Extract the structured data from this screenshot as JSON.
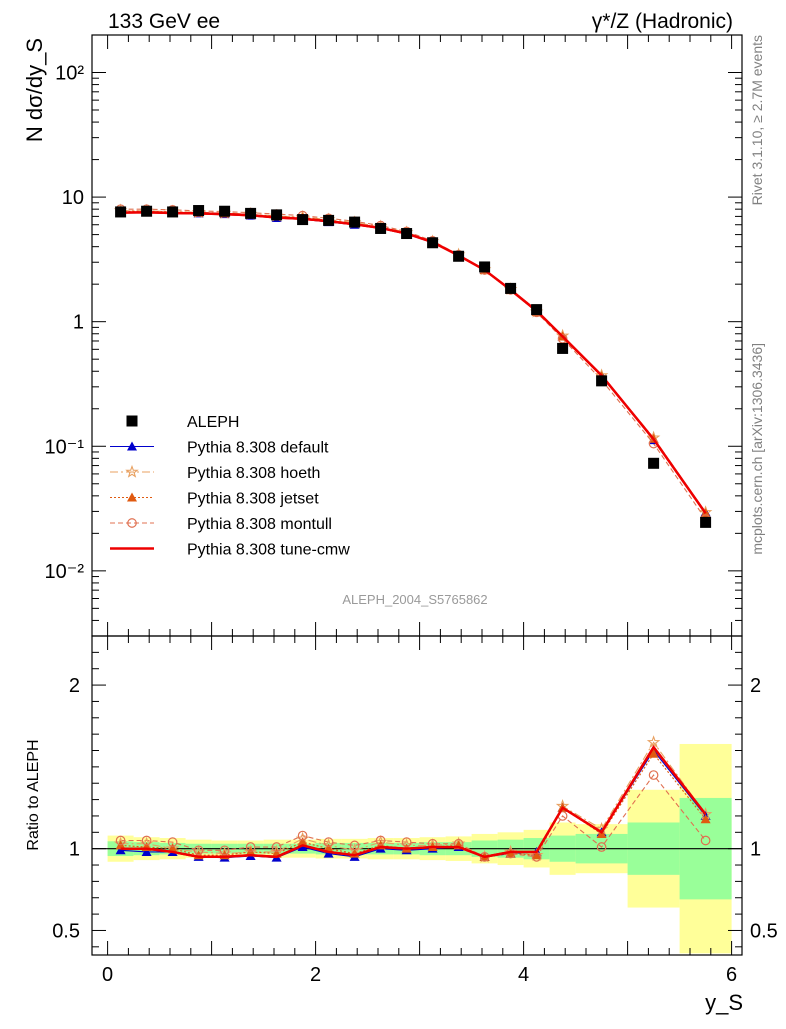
{
  "chart_data": [
    {
      "type": "scatter",
      "panel": "main",
      "title_left": "133 GeV ee",
      "title_right": "γ*/Z (Hadronic)",
      "ylabel": "N dσ/dy_S",
      "yscale": "log",
      "ylim": [
        0.003,
        200
      ],
      "xlim": [
        -0.15,
        6.1
      ],
      "y_ticks": [
        {
          "v": 0.01,
          "label": "10⁻²"
        },
        {
          "v": 0.1,
          "label": "10⁻¹"
        },
        {
          "v": 1,
          "label": "1"
        },
        {
          "v": 10,
          "label": "10"
        },
        {
          "v": 100,
          "label": "10²"
        }
      ],
      "watermark": "ALEPH_2004_S5765862",
      "side_text_top": "Rivet 3.1.10, ≥ 2.7M events",
      "side_text_bottom": "mcplots.cern.ch [arXiv:1306.3436]",
      "legend_position": "lower-left",
      "x": [
        0.125,
        0.375,
        0.625,
        0.875,
        1.125,
        1.375,
        1.625,
        1.875,
        2.125,
        2.375,
        2.625,
        2.875,
        3.125,
        3.375,
        3.625,
        3.875,
        4.125,
        4.375,
        4.75,
        5.25,
        5.75
      ],
      "data_series": {
        "name": "ALEPH",
        "color": "#000000",
        "values": [
          7.6,
          7.7,
          7.6,
          7.8,
          7.7,
          7.4,
          7.2,
          6.6,
          6.5,
          6.3,
          5.6,
          5.1,
          4.3,
          3.35,
          2.75,
          1.85,
          1.25,
          0.61,
          0.335,
          0.073,
          0.0245
        ]
      },
      "series": [
        {
          "name": "Pythia 8.308 default",
          "color": "#0000cc",
          "marker": "triangle",
          "line": "solid",
          "values": [
            7.55,
            7.55,
            7.45,
            7.4,
            7.3,
            7.1,
            6.8,
            6.65,
            6.3,
            6.0,
            5.6,
            5.05,
            4.3,
            3.4,
            2.6,
            1.8,
            1.23,
            0.76,
            0.37,
            0.112,
            0.0295
          ]
        },
        {
          "name": "Pythia 8.308 hoeth",
          "color": "#e8a060",
          "marker": "star",
          "line": "dashdot",
          "values": [
            7.8,
            7.75,
            7.65,
            7.55,
            7.45,
            7.3,
            7.05,
            6.9,
            6.6,
            6.25,
            5.8,
            5.2,
            4.4,
            3.45,
            2.62,
            1.82,
            1.2,
            0.77,
            0.37,
            0.117,
            0.0295
          ]
        },
        {
          "name": "Pythia 8.308 jetset",
          "color": "#e05a10",
          "marker": "triangle",
          "line": "dotted",
          "values": [
            7.7,
            7.7,
            7.6,
            7.5,
            7.4,
            7.25,
            7.0,
            6.85,
            6.5,
            6.15,
            5.7,
            5.15,
            4.35,
            3.42,
            2.6,
            1.8,
            1.2,
            0.76,
            0.365,
            0.115,
            0.029
          ]
        },
        {
          "name": "Pythia 8.308 montull",
          "color": "#e07050",
          "marker": "circle",
          "line": "dashed",
          "values": [
            8.0,
            8.0,
            7.9,
            7.75,
            7.65,
            7.5,
            7.3,
            7.1,
            6.75,
            6.4,
            5.9,
            5.3,
            4.45,
            3.45,
            2.6,
            1.8,
            1.19,
            0.73,
            0.34,
            0.105,
            0.026
          ]
        },
        {
          "name": "Pythia 8.308 tune-cmw",
          "color": "#ee0000",
          "marker": "none",
          "line": "solid-thick",
          "values": [
            7.5,
            7.55,
            7.45,
            7.4,
            7.3,
            7.15,
            6.85,
            6.7,
            6.4,
            6.05,
            5.65,
            5.1,
            4.35,
            3.4,
            2.6,
            1.8,
            1.22,
            0.76,
            0.37,
            0.114,
            0.029
          ]
        }
      ]
    },
    {
      "type": "line",
      "panel": "ratio",
      "ylabel": "Ratio to ALEPH",
      "xlabel": "y_S",
      "ylim": [
        0.35,
        2.3
      ],
      "xlim": [
        -0.15,
        6.1
      ],
      "y_ticks": [
        {
          "v": 0.5,
          "label": "0.5"
        },
        {
          "v": 1,
          "label": "1"
        },
        {
          "v": 2,
          "label": "2"
        }
      ],
      "x_ticks": [
        {
          "v": 0,
          "label": "0"
        },
        {
          "v": 2,
          "label": "2"
        },
        {
          "v": 4,
          "label": "4"
        },
        {
          "v": 6,
          "label": "6"
        }
      ],
      "bins": [
        [
          0,
          0.25
        ],
        [
          0.25,
          0.5
        ],
        [
          0.5,
          0.75
        ],
        [
          0.75,
          1
        ],
        [
          1,
          1.25
        ],
        [
          1.25,
          1.5
        ],
        [
          1.5,
          1.75
        ],
        [
          1.75,
          2
        ],
        [
          2,
          2.25
        ],
        [
          2.25,
          2.5
        ],
        [
          2.5,
          2.75
        ],
        [
          2.75,
          3
        ],
        [
          3,
          3.25
        ],
        [
          3.25,
          3.5
        ],
        [
          3.5,
          3.75
        ],
        [
          3.75,
          4
        ],
        [
          4,
          4.25
        ],
        [
          4.25,
          4.5
        ],
        [
          4.5,
          5
        ],
        [
          5,
          5.5
        ],
        [
          5.5,
          6
        ]
      ],
      "band_colors": {
        "stat": "#99ff99",
        "total": "#ffff99"
      },
      "band_total_err": [
        0.08,
        0.07,
        0.065,
        0.055,
        0.05,
        0.05,
        0.055,
        0.055,
        0.06,
        0.06,
        0.065,
        0.065,
        0.07,
        0.075,
        0.09,
        0.1,
        0.115,
        0.16,
        0.15,
        0.36,
        0.64
      ],
      "band_stat_err": [
        0.045,
        0.04,
        0.035,
        0.03,
        0.03,
        0.03,
        0.03,
        0.03,
        0.035,
        0.035,
        0.035,
        0.035,
        0.04,
        0.04,
        0.05,
        0.055,
        0.065,
        0.08,
        0.09,
        0.16,
        0.31
      ],
      "series": [
        {
          "name": "Pythia 8.308 default",
          "color": "#0000cc",
          "marker": "triangle",
          "line": "solid",
          "values": [
            0.99,
            0.98,
            0.98,
            0.95,
            0.945,
            0.955,
            0.945,
            1.01,
            0.97,
            0.95,
            1.0,
            0.99,
            1.0,
            1.01,
            0.95,
            0.97,
            0.98,
            1.25,
            1.1,
            1.6,
            1.2
          ]
        },
        {
          "name": "Pythia 8.308 hoeth",
          "color": "#e8a060",
          "marker": "star",
          "line": "dashdot",
          "values": [
            1.03,
            1.03,
            1.0,
            0.98,
            0.97,
            0.98,
            0.98,
            1.06,
            1.02,
            0.99,
            1.04,
            1.02,
            1.02,
            1.03,
            0.95,
            0.98,
            0.96,
            1.26,
            1.12,
            1.65,
            1.21
          ]
        },
        {
          "name": "Pythia 8.308 jetset",
          "color": "#e05a10",
          "marker": "triangle",
          "line": "dotted",
          "values": [
            1.02,
            1.01,
            1.0,
            0.96,
            0.96,
            0.98,
            0.97,
            1.04,
            1.0,
            0.97,
            1.02,
            1.0,
            1.01,
            1.02,
            0.95,
            0.97,
            0.96,
            1.25,
            1.09,
            1.58,
            1.18
          ]
        },
        {
          "name": "Pythia 8.308 montull",
          "color": "#e07050",
          "marker": "circle",
          "line": "dashed",
          "values": [
            1.05,
            1.05,
            1.04,
            0.99,
            0.99,
            1.01,
            1.01,
            1.08,
            1.04,
            1.02,
            1.05,
            1.04,
            1.03,
            1.03,
            0.95,
            0.97,
            0.95,
            1.2,
            1.01,
            1.45,
            1.05
          ]
        },
        {
          "name": "Pythia 8.308 tune-cmw",
          "color": "#ee0000",
          "marker": "none",
          "line": "solid-thick",
          "values": [
            1.0,
            1.0,
            0.98,
            0.95,
            0.95,
            0.96,
            0.95,
            1.02,
            0.98,
            0.96,
            1.01,
            1.0,
            1.01,
            1.01,
            0.95,
            0.98,
            0.98,
            1.25,
            1.1,
            1.62,
            1.21
          ]
        }
      ]
    }
  ]
}
